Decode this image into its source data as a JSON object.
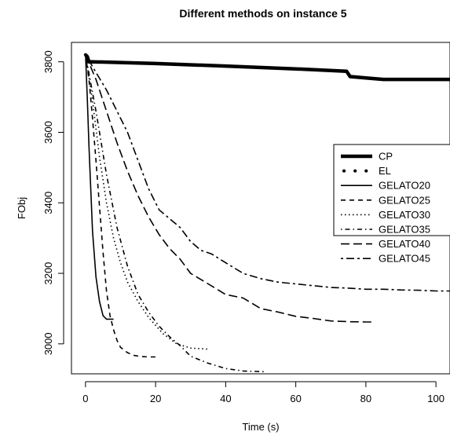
{
  "chart_data": {
    "type": "line",
    "title": "Different methods on instance 5",
    "xlabel": "Time (s)",
    "ylabel": "FObj",
    "xlim": [
      -4,
      104
    ],
    "ylim": [
      2915,
      3855
    ],
    "xticks": [
      0,
      20,
      40,
      60,
      80,
      100
    ],
    "yticks": [
      3000,
      3200,
      3400,
      3600,
      3800
    ],
    "legend_position": "right",
    "series": [
      {
        "name": "CP",
        "style": "thick-solid",
        "x": [
          0,
          0.5,
          1,
          2,
          10,
          20,
          40,
          60,
          74.5,
          75.5,
          80,
          85,
          104
        ],
        "y": [
          3820,
          3815,
          3800,
          3800,
          3798,
          3795,
          3788,
          3780,
          3773,
          3758,
          3754,
          3750,
          3750
        ]
      },
      {
        "name": "EL",
        "style": "dotted-bold",
        "x": [
          0,
          0.3
        ],
        "y": [
          3820,
          3818
        ]
      },
      {
        "name": "GELATO20",
        "style": "solid",
        "x": [
          0,
          0.5,
          1,
          2,
          3,
          4,
          5,
          6,
          7,
          8
        ],
        "y": [
          3820,
          3700,
          3560,
          3320,
          3190,
          3120,
          3080,
          3070,
          3070,
          3070
        ]
      },
      {
        "name": "GELATO25",
        "style": "dashed",
        "x": [
          0,
          1,
          2,
          3,
          4,
          5,
          6,
          7,
          8,
          9,
          10,
          12,
          14,
          16,
          18,
          20
        ],
        "y": [
          3820,
          3750,
          3640,
          3520,
          3390,
          3260,
          3150,
          3080,
          3040,
          3010,
          2990,
          2975,
          2967,
          2964,
          2963,
          2963
        ]
      },
      {
        "name": "GELATO30",
        "style": "dotted",
        "x": [
          0,
          2,
          4,
          6,
          8,
          10,
          12,
          15,
          18,
          22,
          26,
          30,
          35
        ],
        "y": [
          3820,
          3690,
          3530,
          3400,
          3300,
          3230,
          3175,
          3120,
          3075,
          3030,
          3000,
          2988,
          2985
        ]
      },
      {
        "name": "GELATO35",
        "style": "dashdot",
        "x": [
          0,
          3,
          6,
          9,
          12,
          15,
          18,
          21,
          24,
          27,
          30,
          35,
          40,
          45,
          51
        ],
        "y": [
          3820,
          3660,
          3480,
          3330,
          3220,
          3140,
          3090,
          3050,
          3020,
          2995,
          2965,
          2945,
          2930,
          2923,
          2921
        ]
      },
      {
        "name": "GELATO40",
        "style": "longdash",
        "x": [
          0,
          3,
          6,
          9,
          12,
          15,
          18,
          21,
          24,
          27,
          30,
          35,
          40,
          45,
          50,
          55,
          60,
          65,
          70,
          75,
          80,
          82
        ],
        "y": [
          3820,
          3750,
          3660,
          3570,
          3490,
          3420,
          3360,
          3310,
          3270,
          3240,
          3200,
          3170,
          3140,
          3130,
          3100,
          3090,
          3078,
          3072,
          3065,
          3063,
          3062,
          3062
        ]
      },
      {
        "name": "GELATO45",
        "style": "twodash",
        "x": [
          0,
          3,
          6,
          9,
          12,
          15,
          18,
          21,
          24,
          27,
          30,
          33,
          36,
          40,
          45,
          50,
          55,
          60,
          65,
          70,
          75,
          80,
          85,
          90,
          95,
          100,
          104
        ],
        "y": [
          3820,
          3770,
          3720,
          3660,
          3600,
          3520,
          3440,
          3380,
          3355,
          3330,
          3290,
          3265,
          3255,
          3230,
          3200,
          3185,
          3175,
          3170,
          3165,
          3160,
          3158,
          3155,
          3155,
          3153,
          3152,
          3150,
          3150
        ]
      }
    ]
  }
}
